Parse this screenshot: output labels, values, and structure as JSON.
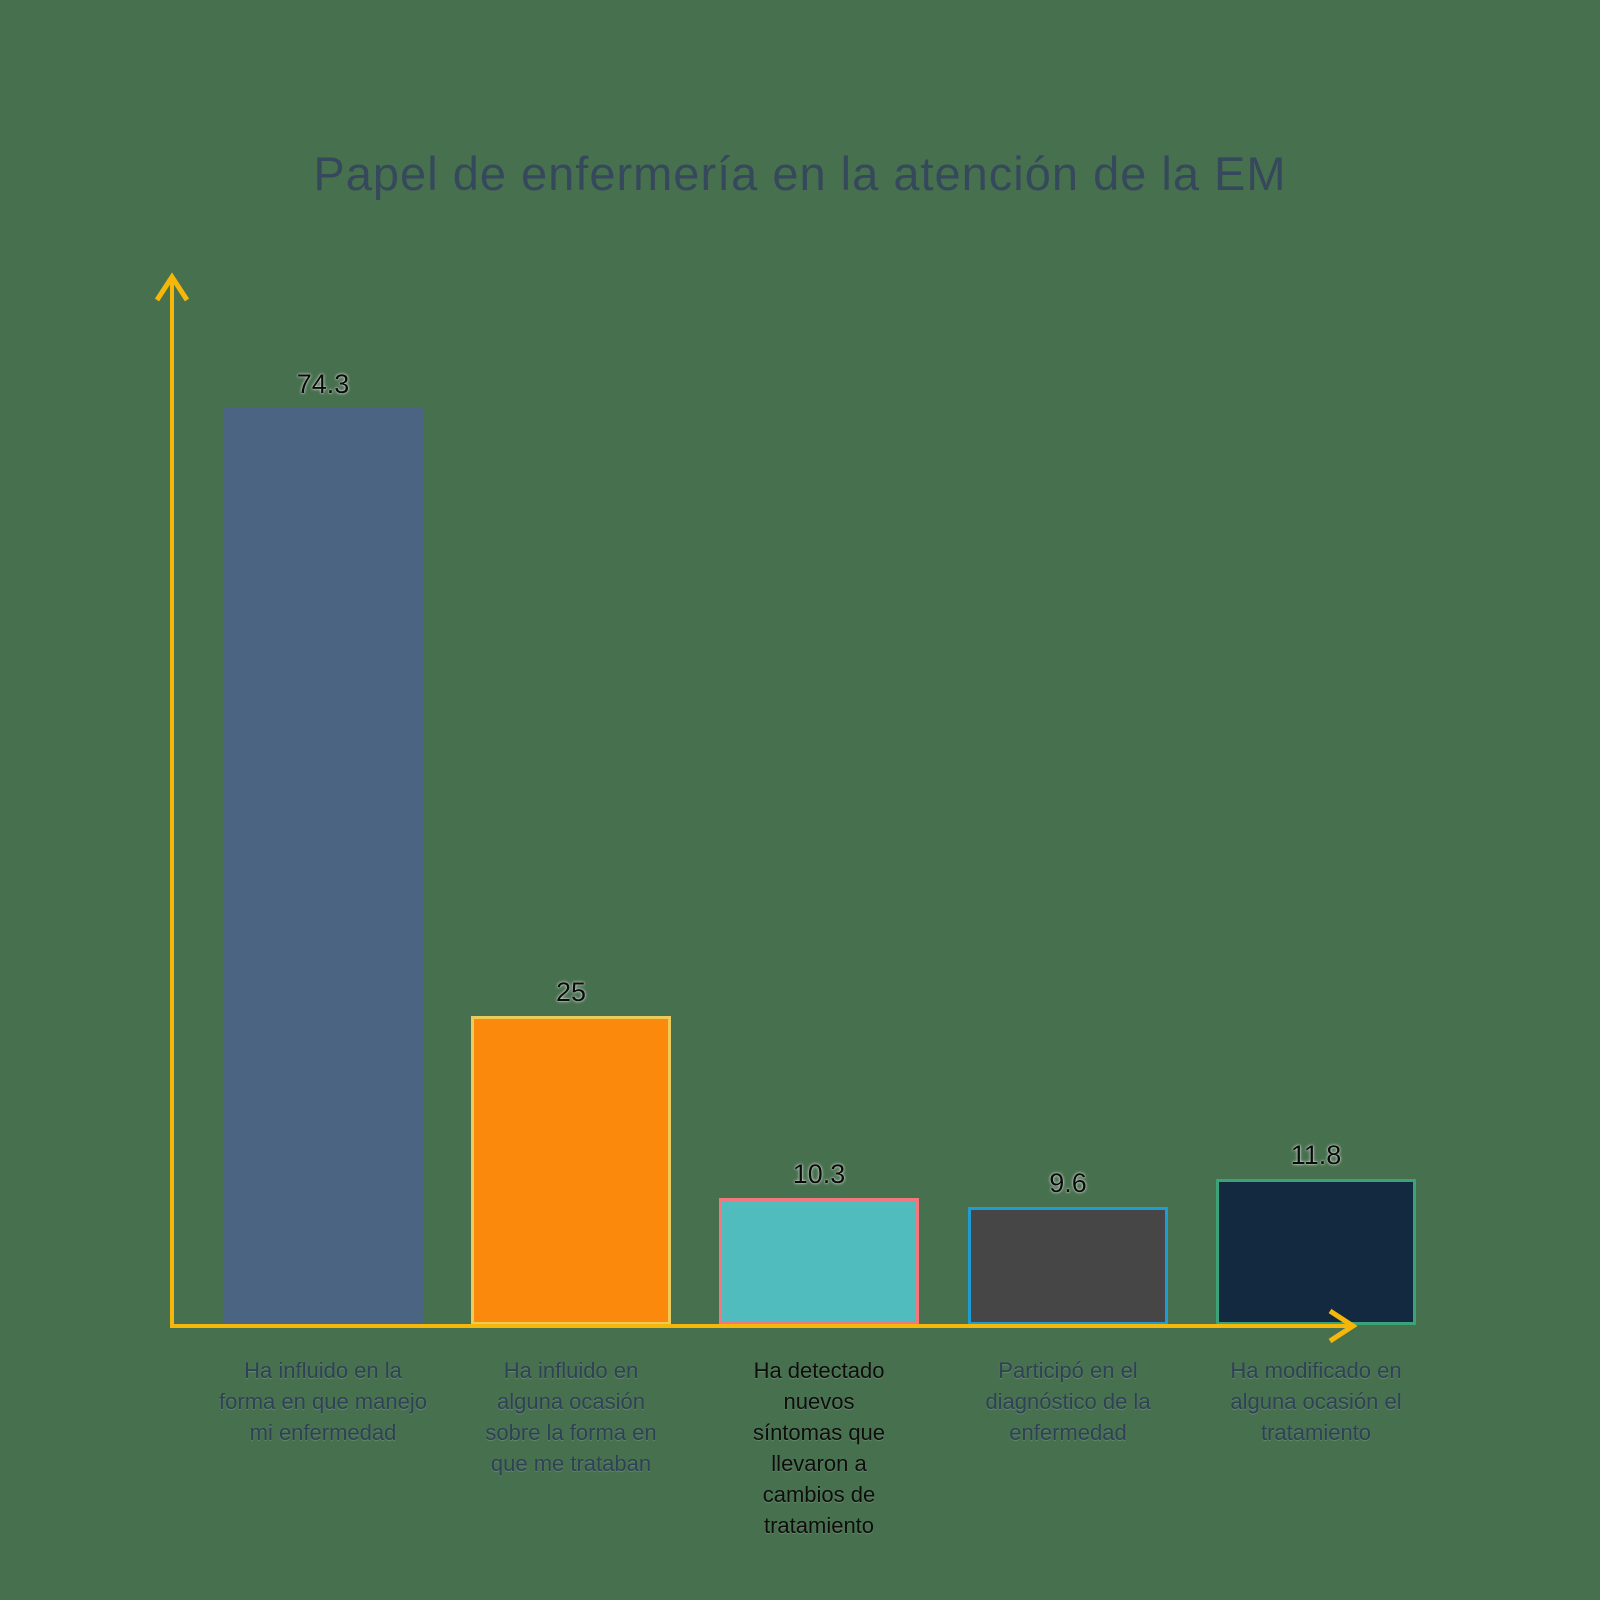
{
  "page": {
    "background_color": "#47704E"
  },
  "chart_data": {
    "type": "bar",
    "title": "Papel de enfermería en la atención de la EM",
    "title_color": "#36495C",
    "axis_color": "#F5B70A",
    "xlabel": "",
    "ylabel": "",
    "ylim": [
      0,
      85
    ],
    "grid": false,
    "legend": false,
    "categories": [
      "Ha influido en la\nforma en que manejo\nmi enfermedad",
      "Ha influido en\nalguna ocasión\nsobre la forma en\nque me trataban",
      "Ha detectado\nnuevos\nsíntomas que\nllevaron a\ncambios de\ntratamiento",
      "Participó en el\ndiagnóstico de la\nenfermedad",
      "Ha modificado en\nalguna ocasión el\ntratamiento"
    ],
    "values": [
      74.3,
      25,
      10.3,
      9.6,
      11.8
    ],
    "value_labels": [
      "74.3",
      "25",
      "10.3",
      "9.6",
      "11.8"
    ],
    "value_label_color": "#0b0b0b",
    "bar_fill_colors": [
      "#4A6482",
      "#FB8A0C",
      "#50BCBD",
      "#464646",
      "#132940"
    ],
    "bar_border_colors": [
      null,
      "#EDCB5B",
      "#F2777F",
      "#1F9CD5",
      "#3CA379"
    ],
    "category_label_colors": [
      "#2E4156",
      "#2E4156",
      "#0d0d0d",
      "#2E4156",
      "#2E4156"
    ]
  }
}
